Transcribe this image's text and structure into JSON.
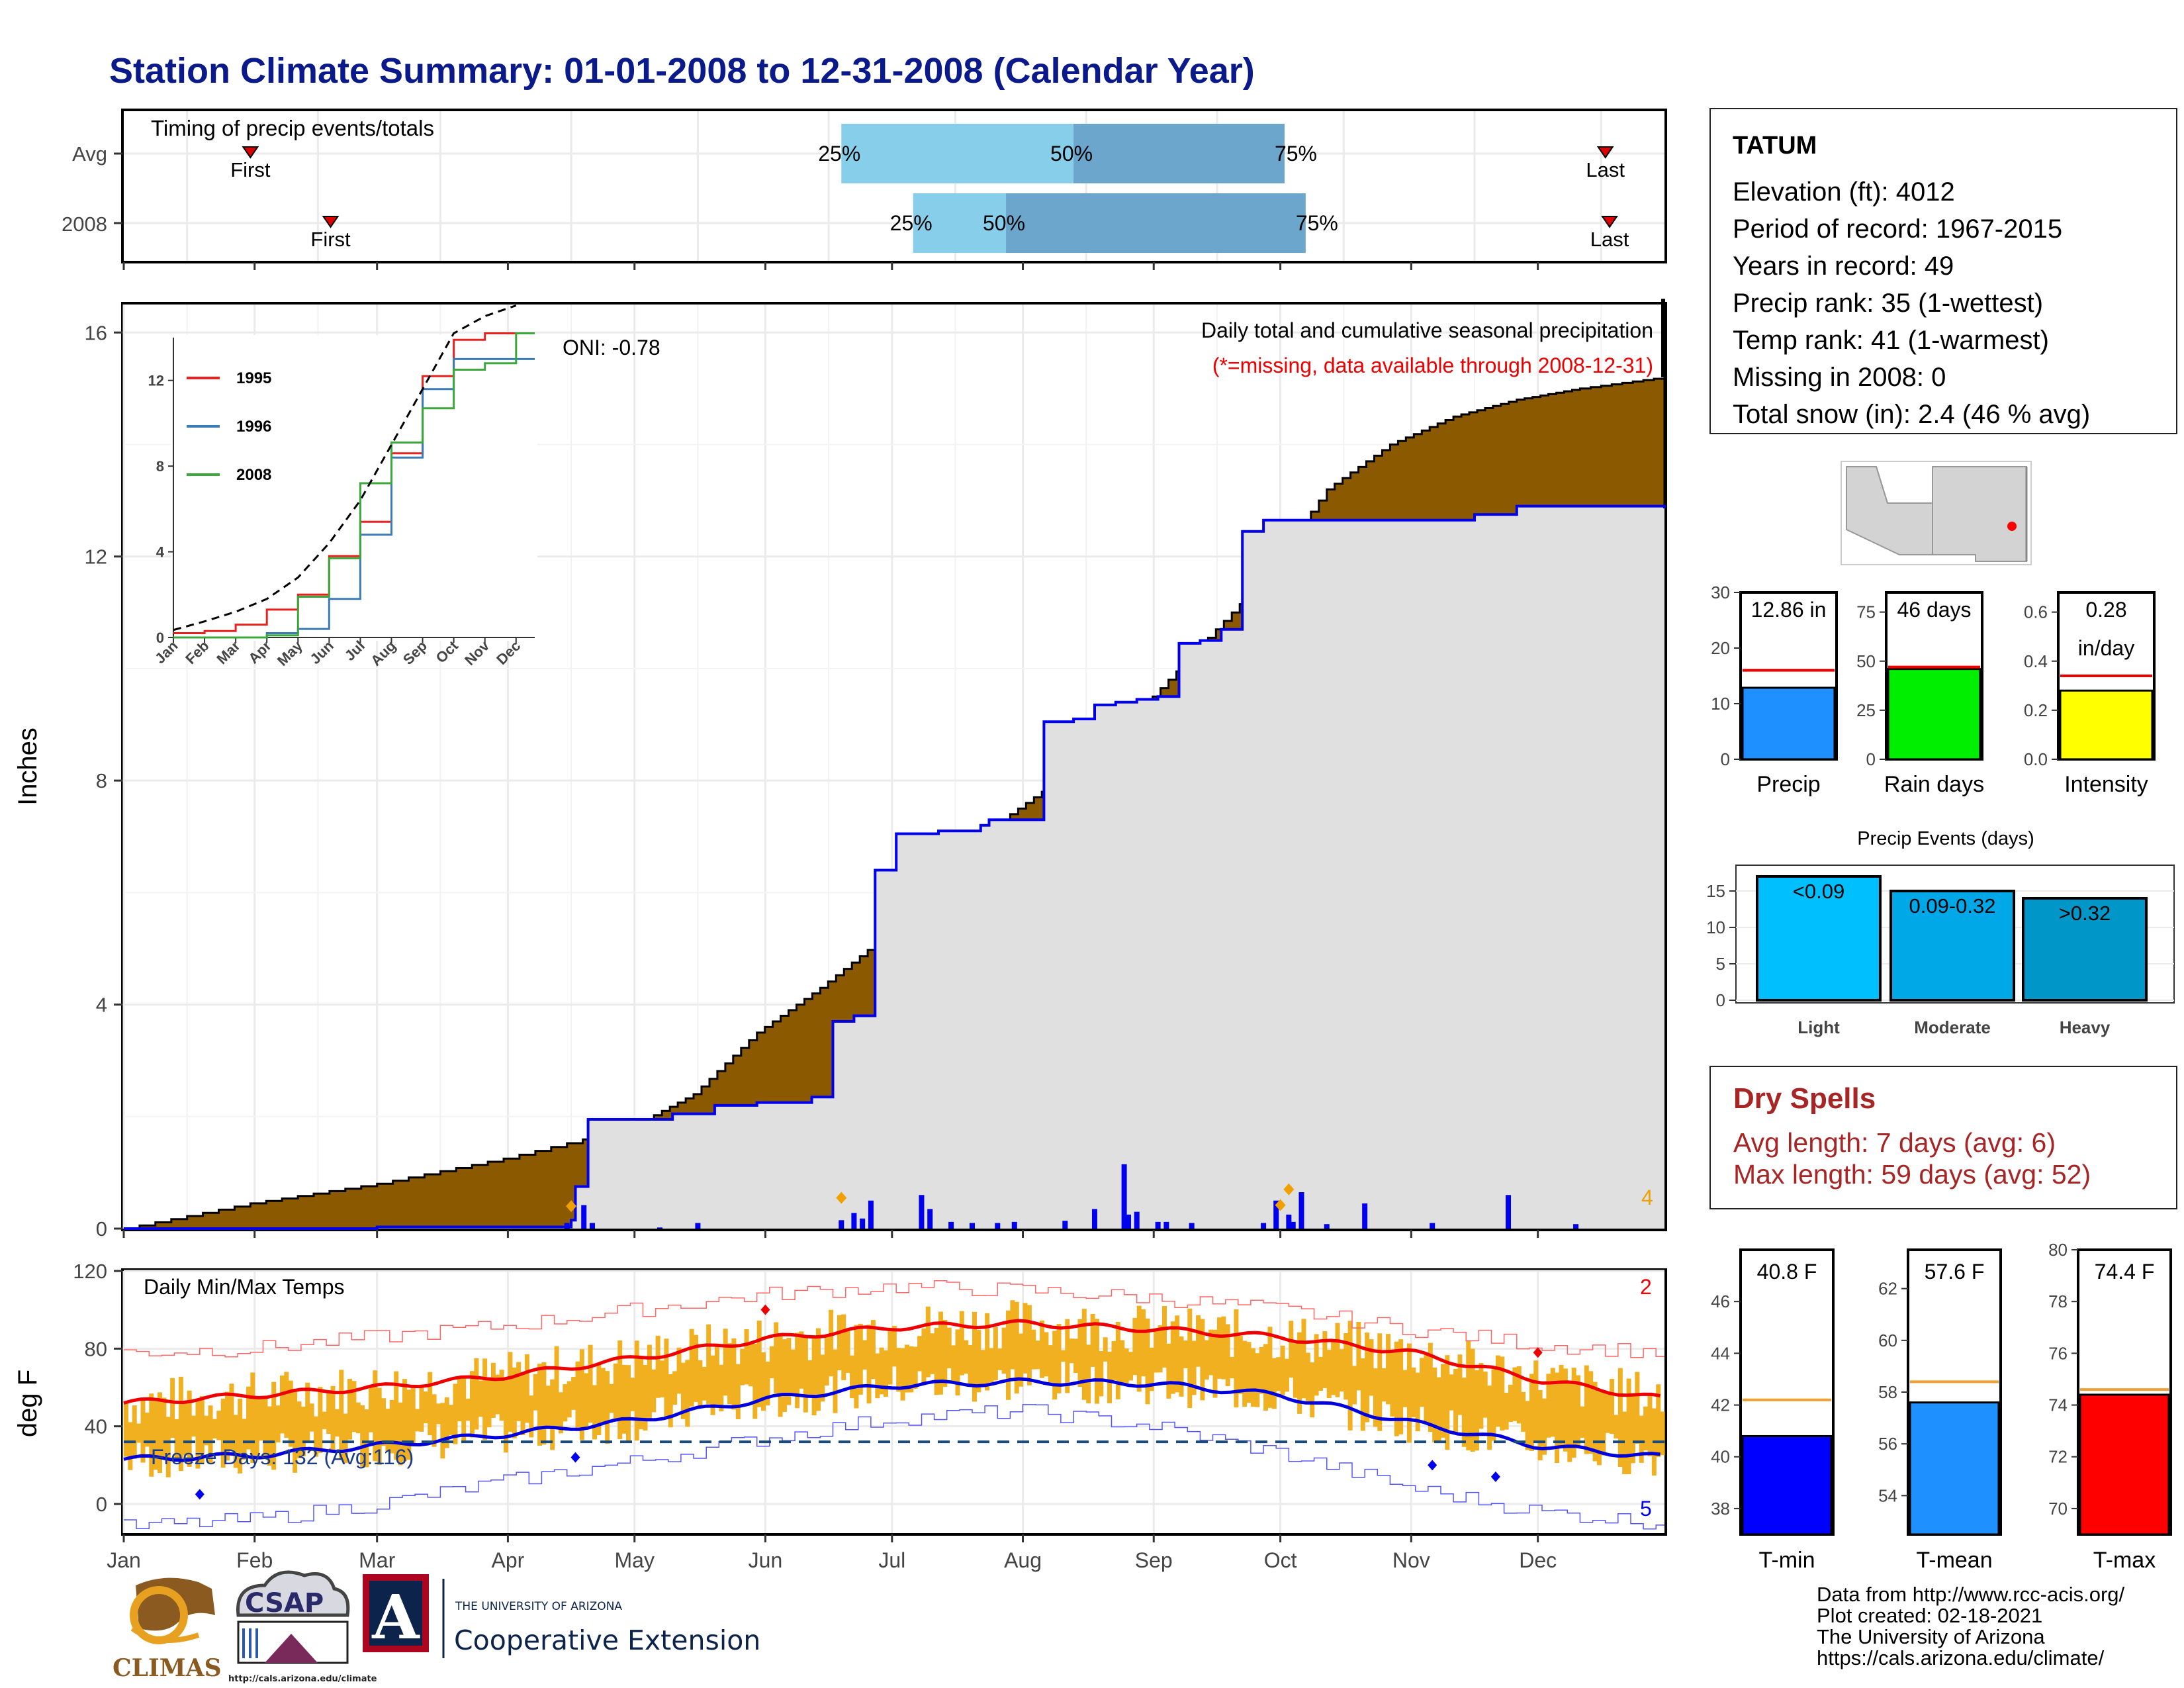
{
  "title": "Station Climate Summary: 01-01-2008 to 12-31-2008 (Calendar Year)",
  "timing": {
    "panel_label": "Timing of precip events/totals",
    "rows": [
      {
        "label": "Avg",
        "first_label": "First",
        "last_label": "Last",
        "first_day": 30,
        "last_day": 351,
        "p25_day": 170,
        "p50_day": 225,
        "p75_day": 275,
        "p25_label": "25%",
        "p50_label": "50%",
        "p75_label": "75%"
      },
      {
        "label": "2008",
        "first_label": "First",
        "last_label": "Last",
        "first_day": 49,
        "last_day": 352,
        "p25_day": 187,
        "p50_day": 209,
        "p75_day": 280,
        "p25_label": "25%",
        "p50_label": "50%",
        "p75_label": "75%"
      }
    ]
  },
  "precip_panel": {
    "ylabel": "Inches",
    "yticks": [
      "0",
      "4",
      "8",
      "12",
      "16"
    ],
    "ylim": [
      0,
      16.5
    ],
    "title_line1": "Daily total and cumulative seasonal precipitation",
    "title_line2": "(*=missing, data available through 2008-12-31)",
    "oni_label": "ONI: -0.78",
    "corner_count": "4",
    "chart_data": {
      "type": "area",
      "series": [
        {
          "name": "Avg cumulative",
          "x_day": [
            0,
            30,
            60,
            90,
            120,
            135,
            150,
            165,
            180,
            195,
            210,
            225,
            240,
            255,
            270,
            285,
            300,
            315,
            330,
            345,
            365
          ],
          "values": [
            0,
            0.45,
            0.8,
            1.25,
            1.8,
            2.4,
            3.5,
            4.3,
            5.2,
            6.4,
            7.4,
            8.2,
            9.2,
            10.4,
            11.6,
            13.2,
            14.0,
            14.5,
            14.8,
            15.0,
            15.2
          ]
        },
        {
          "name": "2008 cumulative",
          "x_day": [
            0,
            60,
            106,
            107,
            110,
            120,
            130,
            140,
            150,
            158,
            163,
            168,
            173,
            178,
            183,
            188,
            193,
            198,
            203,
            205,
            212,
            218,
            225,
            230,
            235,
            240,
            245,
            250,
            255,
            260,
            265,
            270,
            275,
            278,
            285,
            290,
            300,
            310,
            320,
            330,
            340,
            365
          ],
          "values": [
            0,
            0.03,
            0.15,
            0.75,
            1.95,
            1.95,
            2.05,
            2.2,
            2.25,
            2.25,
            2.35,
            3.7,
            3.8,
            6.4,
            7.05,
            7.05,
            7.1,
            7.1,
            7.2,
            7.3,
            7.3,
            9.05,
            9.1,
            9.35,
            9.4,
            9.45,
            9.5,
            10.45,
            10.5,
            10.7,
            12.45,
            12.65,
            12.65,
            12.65,
            12.65,
            12.65,
            12.65,
            12.65,
            12.75,
            12.9,
            12.9,
            12.86
          ]
        }
      ],
      "daily_bars_days": [
        105,
        109,
        111,
        127,
        136,
        170,
        173,
        175,
        177,
        189,
        191,
        196,
        201,
        207,
        211,
        223,
        230,
        237,
        238,
        240,
        245,
        247,
        253,
        270,
        273,
        276,
        277,
        279,
        285,
        294,
        310,
        328,
        344
      ],
      "daily_bars_values": [
        0.1,
        0.42,
        0.1,
        0.02,
        0.1,
        0.15,
        0.28,
        0.18,
        0.5,
        0.6,
        0.35,
        0.12,
        0.1,
        0.1,
        0.12,
        0.14,
        0.35,
        1.15,
        0.25,
        0.3,
        0.12,
        0.12,
        0.1,
        0.1,
        0.5,
        0.25,
        0.12,
        0.65,
        0.08,
        0.45,
        0.1,
        0.6,
        0.08
      ],
      "inset": {
        "type": "line",
        "categories": [
          "Jan",
          "Feb",
          "Mar",
          "Apr",
          "May",
          "Jun",
          "Jul",
          "Aug",
          "Sep",
          "Oct",
          "Nov",
          "Dec"
        ],
        "yticks": [
          "0",
          "4",
          "8",
          "12"
        ],
        "ylim": [
          0,
          14
        ],
        "series": [
          {
            "name": "1995",
            "color": "#e8201e",
            "values": [
              0.2,
              0.3,
              0.6,
              1.3,
              2.0,
              3.8,
              5.4,
              8.6,
              12.2,
              13.9,
              14.2,
              14.2
            ]
          },
          {
            "name": "1996",
            "color": "#3b7cb8",
            "values": [
              0.0,
              0.0,
              0.0,
              0.2,
              0.4,
              1.8,
              4.8,
              8.4,
              11.6,
              13.0,
              13.0,
              13.0
            ]
          },
          {
            "name": "2008",
            "color": "#3aa83a",
            "values": [
              0.0,
              0.0,
              0.0,
              0.1,
              1.9,
              3.7,
              7.2,
              9.1,
              10.7,
              12.5,
              12.8,
              14.2
            ]
          },
          {
            "name": "Avg",
            "values": [
              0.35,
              0.75,
              1.2,
              1.8,
              2.8,
              4.4,
              6.4,
              9.0,
              11.6,
              14.2,
              15.0,
              15.5
            ]
          }
        ]
      }
    }
  },
  "temp_panel": {
    "ylabel": "deg F",
    "label": "Daily Min/Max Temps",
    "yticks": [
      "0",
      "40",
      "80",
      "120"
    ],
    "freeze_label": "Freeze Days: 132 (Avg:116)",
    "count_top": "2",
    "count_bottom": "5",
    "xticks": [
      "Jan",
      "Feb",
      "Mar",
      "Apr",
      "May",
      "Jun",
      "Jul",
      "Aug",
      "Sep",
      "Oct",
      "Nov",
      "Dec"
    ],
    "freezing_line_f": 32,
    "chart_data": {
      "type": "line",
      "ylim": [
        -15,
        120
      ],
      "month_days": [
        0,
        31,
        60,
        91,
        121,
        152,
        182,
        213,
        244,
        274,
        305,
        335,
        365
      ],
      "series": [
        {
          "name": "Avg max",
          "color": "#ff0000",
          "values": [
            52,
            56,
            60,
            66,
            75,
            85,
            91,
            93,
            90,
            86,
            78,
            64,
            54
          ]
        },
        {
          "name": "Avg min",
          "color": "#0000ff",
          "values": [
            23,
            25,
            30,
            36,
            43,
            54,
            61,
            63,
            62,
            56,
            42,
            30,
            24
          ]
        },
        {
          "name": "Record max",
          "color": "#ff4444",
          "values": [
            78,
            80,
            86,
            92,
            100,
            108,
            112,
            110,
            106,
            100,
            90,
            82,
            78
          ]
        },
        {
          "name": "Record min",
          "color": "#3333ff",
          "values": [
            -12,
            -8,
            0,
            12,
            22,
            34,
            44,
            48,
            40,
            26,
            8,
            -4,
            -10
          ]
        }
      ]
    }
  },
  "station": {
    "name": "TATUM",
    "lines": [
      "Elevation (ft): 4012",
      "Period of record: 1967-2015",
      "Years in record: 49",
      "Precip rank: 35 (1-wettest)",
      "Temp rank: 41 (1-warmest)",
      "Missing in 2008: 0",
      "Total snow (in): 2.4 (46 % avg)"
    ]
  },
  "mini_bars": [
    {
      "label": "Precip",
      "value_text": "12.86 in",
      "value": 12.86,
      "avg": 16.0,
      "ymax": 30,
      "yticks": [
        "0",
        "10",
        "20",
        "30"
      ],
      "color": "#1e90ff"
    },
    {
      "label": "Rain days",
      "value_text": "46 days",
      "value": 46,
      "avg": 47,
      "ymax": 85,
      "yticks": [
        "0",
        "25",
        "50",
        "75"
      ],
      "color": "#00ee00"
    },
    {
      "label": "Intensity",
      "value_text": "0.28",
      "value_text2": "in/day",
      "value": 0.28,
      "avg": 0.34,
      "ymax": 0.68,
      "yticks": [
        "0.0",
        "0.2",
        "0.4",
        "0.6"
      ],
      "color": "#ffff00"
    }
  ],
  "events": {
    "title": "Precip Events (days)",
    "yticks": [
      "0",
      "5",
      "10",
      "15"
    ],
    "ymax": 18,
    "chart_data": {
      "type": "bar",
      "categories": [
        "Light",
        "Moderate",
        "Heavy"
      ],
      "bar_labels": [
        "<0.09",
        "0.09-0.32",
        ">0.32"
      ],
      "values": [
        17,
        15,
        14
      ],
      "colors": [
        "#00bfff",
        "#00a8e8",
        "#0096c8"
      ]
    }
  },
  "dry": {
    "title": "Dry Spells",
    "avg_line": "Avg length: 7 days (avg: 6)",
    "max_line": "Max length: 59 days (avg: 52)"
  },
  "temp_bars": [
    {
      "label": "T-min",
      "value_text": "40.8 F",
      "value": 40.8,
      "avg": 42.2,
      "ymin": 37,
      "ymax": 48,
      "ytick_vals": [
        38,
        40,
        42,
        44,
        46
      ],
      "yticks": [
        "38",
        "40",
        "42",
        "44",
        "46"
      ],
      "color": "#0000ff"
    },
    {
      "label": "T-mean",
      "value_text": "57.6 F",
      "value": 57.6,
      "avg": 58.4,
      "ymin": 52.5,
      "ymax": 63.5,
      "ytick_vals": [
        54,
        56,
        58,
        60,
        62
      ],
      "yticks": [
        "54",
        "56",
        "58",
        "60",
        "62"
      ],
      "color": "#1e90ff"
    },
    {
      "label": "T-max",
      "value_text": "74.4 F",
      "value": 74.4,
      "avg": 74.6,
      "ymin": 69,
      "ymax": 80,
      "ytick_vals": [
        70,
        72,
        74,
        76,
        78,
        80
      ],
      "yticks": [
        "70",
        "72",
        "74",
        "76",
        "78",
        "80"
      ],
      "color": "#ff0000"
    }
  ],
  "credits": [
    "Data from http://www.rcc-acis.org/",
    "Plot created: 02-18-2021",
    "The University of Arizona",
    "https://cals.arizona.edu/climate/"
  ],
  "logos": {
    "climas": "CLIMAS",
    "csap": "CSAP",
    "csap_url": "http://cals.arizona.edu/climate",
    "ua_small": "THE UNIVERSITY OF ARIZONA",
    "ua_big": "Cooperative Extension",
    "ua_letter": "A"
  }
}
